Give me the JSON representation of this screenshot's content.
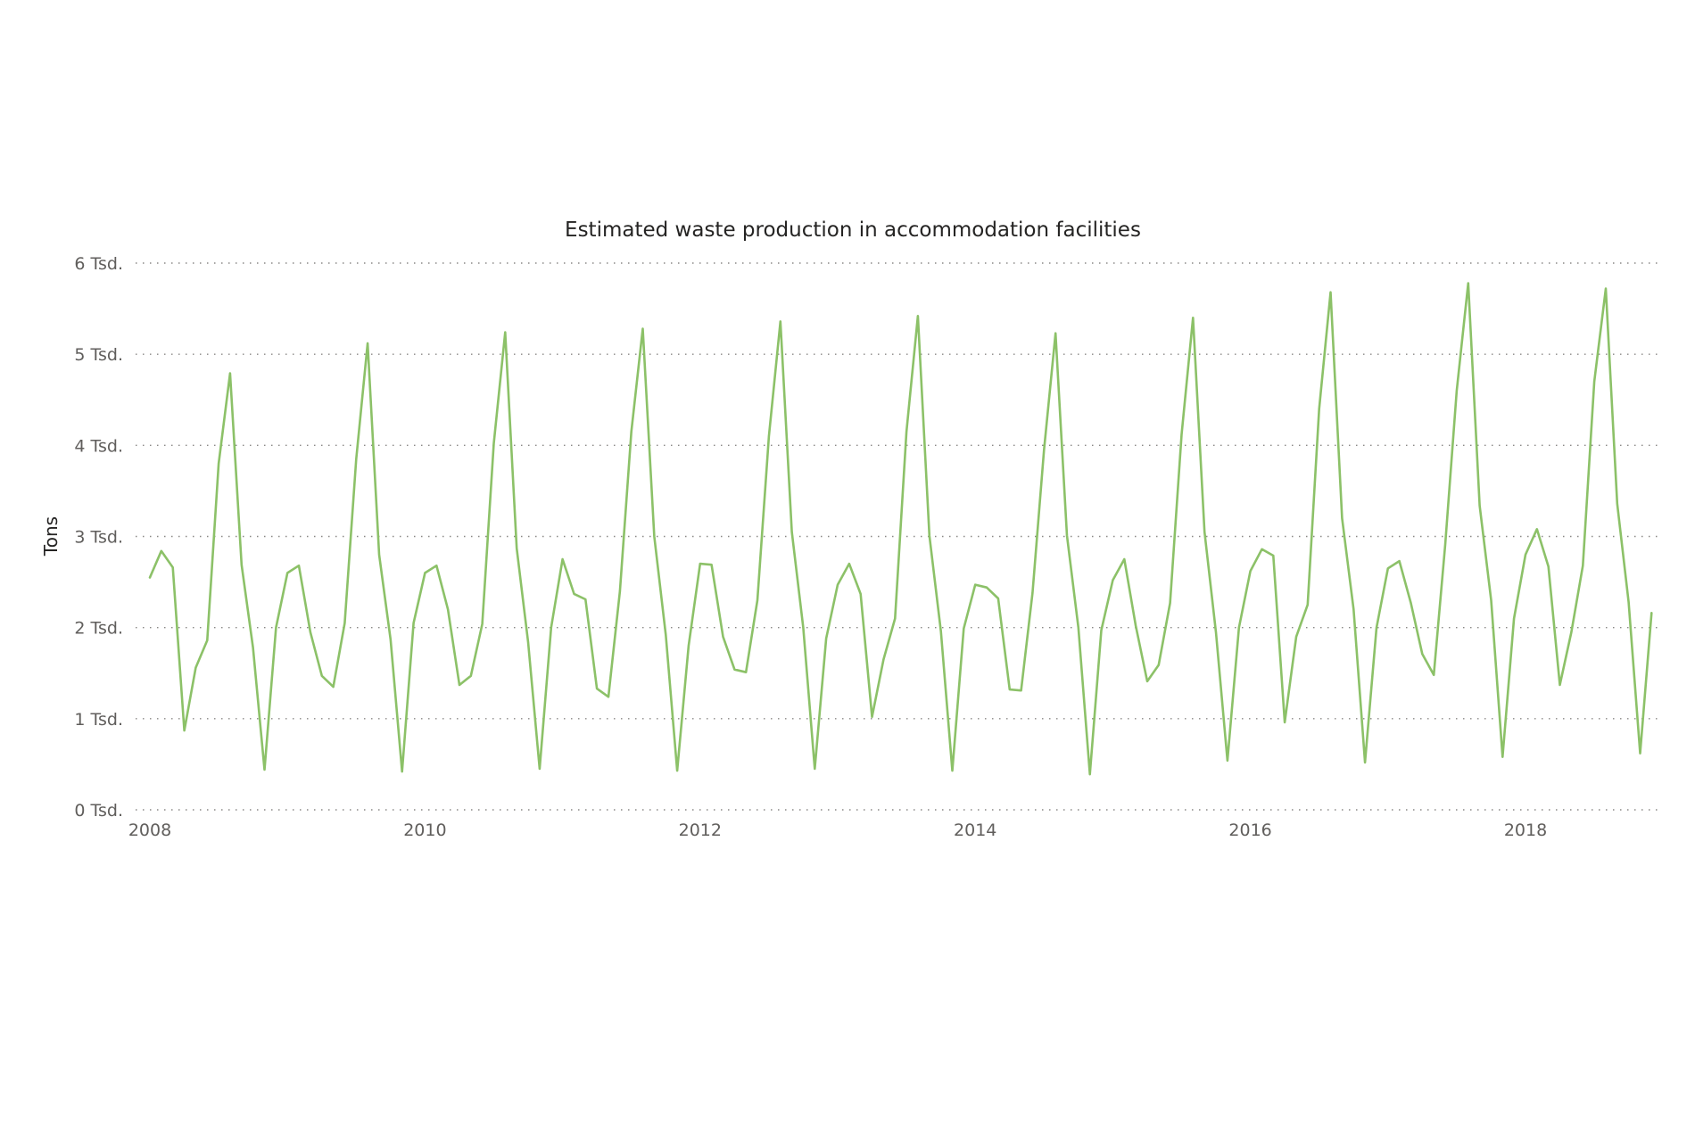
{
  "chart_data": {
    "type": "line",
    "title": "Estimated waste production in accommodation facilities",
    "ylabel": "Tons",
    "xlabel": "",
    "ylim": [
      0,
      6000
    ],
    "yticks": [
      {
        "value": 0,
        "label": "0 Tsd."
      },
      {
        "value": 1000,
        "label": "1 Tsd."
      },
      {
        "value": 2000,
        "label": "2 Tsd."
      },
      {
        "value": 3000,
        "label": "3 Tsd."
      },
      {
        "value": 4000,
        "label": "4 Tsd."
      },
      {
        "value": 5000,
        "label": "5 Tsd."
      },
      {
        "value": 6000,
        "label": "6 Tsd."
      }
    ],
    "xlim": [
      "2008-01",
      "2019-01"
    ],
    "xticks": [
      "2008",
      "2010",
      "2012",
      "2014",
      "2016",
      "2018"
    ],
    "grid": "horizontal dotted",
    "series": [
      {
        "color": "#8cc168",
        "x": [
          "2008-01",
          "2008-02",
          "2008-03",
          "2008-04",
          "2008-05",
          "2008-06",
          "2008-07",
          "2008-08",
          "2008-09",
          "2008-10",
          "2008-11",
          "2008-12",
          "2009-01",
          "2009-02",
          "2009-03",
          "2009-04",
          "2009-05",
          "2009-06",
          "2009-07",
          "2009-08",
          "2009-09",
          "2009-10",
          "2009-11",
          "2009-12",
          "2010-01",
          "2010-02",
          "2010-03",
          "2010-04",
          "2010-05",
          "2010-06",
          "2010-07",
          "2010-08",
          "2010-09",
          "2010-10",
          "2010-11",
          "2010-12",
          "2011-01",
          "2011-02",
          "2011-03",
          "2011-04",
          "2011-05",
          "2011-06",
          "2011-07",
          "2011-08",
          "2011-09",
          "2011-10",
          "2011-11",
          "2011-12",
          "2012-01",
          "2012-02",
          "2012-03",
          "2012-04",
          "2012-05",
          "2012-06",
          "2012-07",
          "2012-08",
          "2012-09",
          "2012-10",
          "2012-11",
          "2012-12",
          "2013-01",
          "2013-02",
          "2013-03",
          "2013-04",
          "2013-05",
          "2013-06",
          "2013-07",
          "2013-08",
          "2013-09",
          "2013-10",
          "2013-11",
          "2013-12",
          "2014-01",
          "2014-02",
          "2014-03",
          "2014-04",
          "2014-05",
          "2014-06",
          "2014-07",
          "2014-08",
          "2014-09",
          "2014-10",
          "2014-11",
          "2014-12",
          "2015-01",
          "2015-02",
          "2015-03",
          "2015-04",
          "2015-05",
          "2015-06",
          "2015-07",
          "2015-08",
          "2015-09",
          "2015-10",
          "2015-11",
          "2015-12",
          "2016-01",
          "2016-02",
          "2016-03",
          "2016-04",
          "2016-05",
          "2016-06",
          "2016-07",
          "2016-08",
          "2016-09",
          "2016-10",
          "2016-11",
          "2016-12",
          "2017-01",
          "2017-02",
          "2017-03",
          "2017-04",
          "2017-05",
          "2017-06",
          "2017-07",
          "2017-08",
          "2017-09",
          "2017-10",
          "2017-11",
          "2017-12",
          "2018-01",
          "2018-02",
          "2018-03",
          "2018-04",
          "2018-05",
          "2018-06",
          "2018-07",
          "2018-08",
          "2018-09",
          "2018-10",
          "2018-11",
          "2018-12"
        ],
        "values": [
          2550,
          2840,
          2660,
          870,
          1560,
          1860,
          3800,
          4790,
          2690,
          1780,
          440,
          2000,
          2600,
          2680,
          1950,
          1470,
          1350,
          2050,
          3850,
          5120,
          2800,
          1870,
          420,
          2050,
          2600,
          2680,
          2200,
          1370,
          1470,
          2040,
          4020,
          5240,
          2870,
          1840,
          450,
          2000,
          2750,
          2370,
          2310,
          1330,
          1240,
          2400,
          4150,
          5280,
          3000,
          1920,
          430,
          1800,
          2700,
          2690,
          1900,
          1540,
          1510,
          2300,
          4100,
          5360,
          3050,
          2000,
          450,
          1880,
          2470,
          2700,
          2370,
          1020,
          1650,
          2100,
          4150,
          5420,
          3010,
          1960,
          430,
          1990,
          2470,
          2440,
          2320,
          1320,
          1310,
          2380,
          3950,
          5230,
          3010,
          2000,
          390,
          1970,
          2520,
          2750,
          2020,
          1410,
          1590,
          2270,
          4120,
          5400,
          3050,
          1950,
          540,
          2000,
          2620,
          2860,
          2790,
          960,
          1900,
          2250,
          4400,
          5680,
          3200,
          2200,
          520,
          2000,
          2650,
          2730,
          2270,
          1710,
          1480,
          2910,
          4600,
          5780,
          3340,
          2300,
          580,
          2100,
          2800,
          3080,
          2670,
          1370,
          1950,
          2680,
          4700,
          5720,
          3360,
          2280,
          620,
          2160
        ]
      }
    ]
  }
}
